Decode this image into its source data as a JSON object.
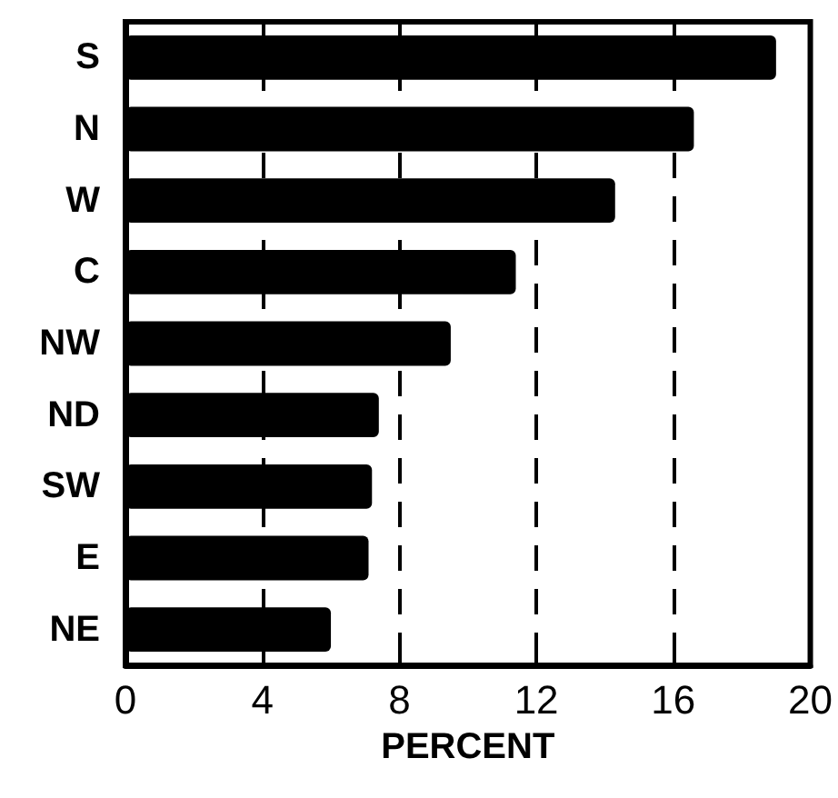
{
  "chart_data": {
    "type": "bar",
    "orientation": "horizontal",
    "xlabel": "PERCENT",
    "categories": [
      "S",
      "N",
      "W",
      "C",
      "NW",
      "ND",
      "SW",
      "E",
      "NE"
    ],
    "values": [
      19.0,
      16.6,
      14.3,
      11.4,
      9.5,
      7.4,
      7.2,
      7.1,
      6.0
    ],
    "color": "#000000",
    "xlim": [
      0,
      20
    ],
    "xticks": [
      0,
      4,
      8,
      12,
      16,
      20
    ],
    "grid": "x"
  }
}
